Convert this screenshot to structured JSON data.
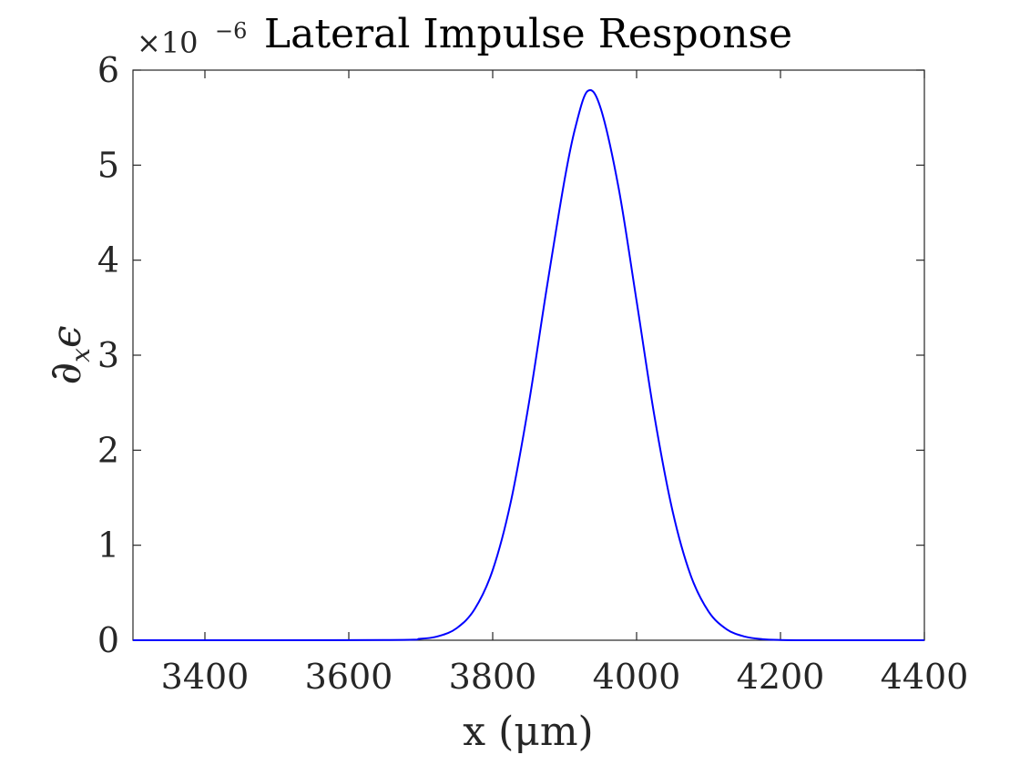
{
  "chart_data": {
    "type": "line",
    "title": "Lateral Impulse Response",
    "exponent_label": "×10",
    "exponent_power": "−6",
    "xlabel": "x (μm)",
    "ylabel_symbol": "∂",
    "ylabel_subscript": "x",
    "ylabel_suffix": "ϵ",
    "xlim": [
      3300,
      4400
    ],
    "ylim": [
      0,
      6
    ],
    "xticks": [
      3400,
      3600,
      3800,
      4000,
      4200,
      4400
    ],
    "yticks": [
      0,
      1,
      2,
      3,
      4,
      5,
      6
    ],
    "grid": false,
    "line_color": "#0000ff",
    "series": [
      {
        "x": [
          3300,
          3650,
          3700,
          3725,
          3750,
          3775,
          3800,
          3825,
          3850,
          3875,
          3900,
          3915,
          3932,
          3950,
          3975,
          4000,
          4025,
          4050,
          4075,
          4100,
          4125,
          4150,
          4175,
          4200,
          4250,
          4400
        ],
        "y": [
          0,
          0.002,
          0.016,
          0.044,
          0.127,
          0.328,
          0.738,
          1.45,
          2.48,
          3.7,
          4.85,
          5.4,
          5.78,
          5.6,
          4.76,
          3.57,
          2.35,
          1.36,
          0.687,
          0.303,
          0.116,
          0.039,
          0.011,
          0.003,
          0.0001,
          0
        ]
      }
    ]
  }
}
